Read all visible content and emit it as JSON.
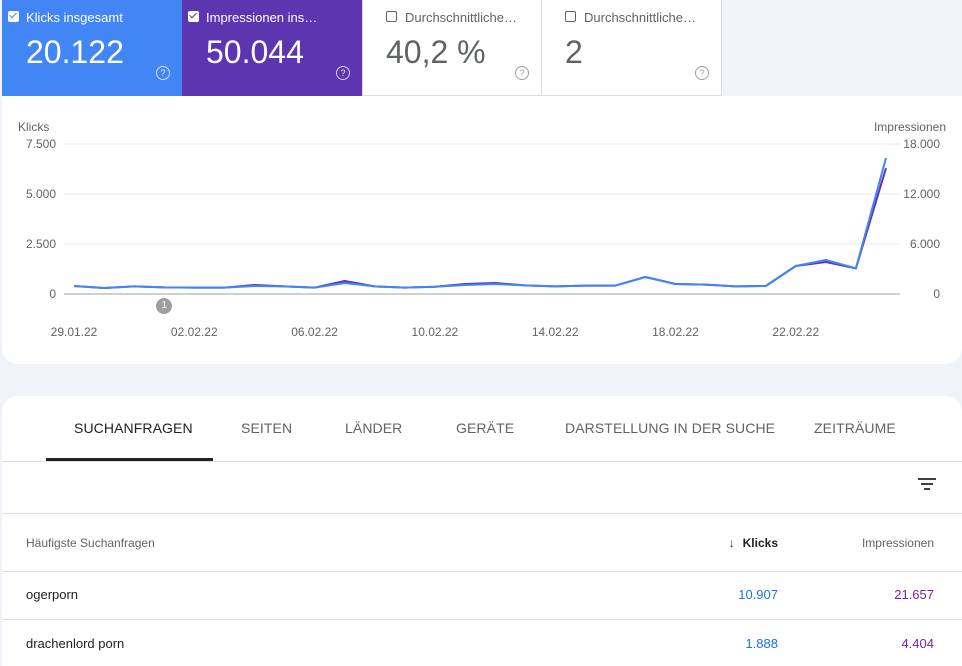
{
  "metrics": [
    {
      "label": "Klicks insgesamt",
      "value": "20.122",
      "checked": true
    },
    {
      "label": "Impressionen ins…",
      "value": "50.044",
      "checked": true
    },
    {
      "label": "Durchschnittliche…",
      "value": "40,2 %",
      "checked": false
    },
    {
      "label": "Durchschnittliche…",
      "value": "2",
      "checked": false
    }
  ],
  "chart_data": {
    "type": "line",
    "x": [
      "29.01.22",
      "30.01.22",
      "31.01.22",
      "01.02.22",
      "02.02.22",
      "03.02.22",
      "04.02.22",
      "05.02.22",
      "06.02.22",
      "07.02.22",
      "08.02.22",
      "09.02.22",
      "10.02.22",
      "11.02.22",
      "12.02.22",
      "13.02.22",
      "14.02.22",
      "15.02.22",
      "16.02.22",
      "17.02.22",
      "18.02.22",
      "19.02.22",
      "20.02.22",
      "21.02.22",
      "22.02.22",
      "23.02.22",
      "24.02.22",
      "25.02.22"
    ],
    "xticks": [
      "29.01.22",
      "02.02.22",
      "06.02.22",
      "10.02.22",
      "14.02.22",
      "18.02.22",
      "22.02.22"
    ],
    "ylabel_left": "Klicks",
    "ylabel_right": "Impressionen",
    "yticks_left": [
      "7.500",
      "5.000",
      "2.500",
      "0"
    ],
    "yticks_right": [
      "18.000",
      "12.000",
      "6.000",
      "0"
    ],
    "ylim_left": [
      0,
      7500
    ],
    "ylim_right": [
      0,
      18000
    ],
    "grid": true,
    "annotation": {
      "label": "1",
      "x": "01.02.22"
    },
    "series": [
      {
        "name": "Klicks",
        "axis": "left",
        "color": "#4285f4",
        "values": [
          400,
          300,
          380,
          330,
          320,
          320,
          400,
          380,
          320,
          550,
          380,
          320,
          360,
          450,
          500,
          430,
          380,
          420,
          420,
          850,
          500,
          470,
          380,
          400,
          1400,
          1700,
          1280,
          6800
        ]
      },
      {
        "name": "Impressionen",
        "axis": "right",
        "color": "#5e35b1",
        "values": [
          960,
          720,
          910,
          790,
          770,
          770,
          1080,
          910,
          770,
          1560,
          910,
          770,
          860,
          1200,
          1320,
          1030,
          910,
          1010,
          1010,
          2040,
          1200,
          1130,
          910,
          960,
          3360,
          3840,
          3070,
          15100
        ]
      }
    ]
  },
  "tabs": [
    {
      "label": "Suchanfragen",
      "active": true
    },
    {
      "label": "Seiten",
      "active": false
    },
    {
      "label": "Länder",
      "active": false
    },
    {
      "label": "Geräte",
      "active": false
    },
    {
      "label": "Darstellung in der Suche",
      "active": false
    },
    {
      "label": "Zeiträume",
      "active": false
    }
  ],
  "table": {
    "headers": {
      "query": "Häufigste Suchanfragen",
      "clicks": "Klicks",
      "impressions": "Impressionen"
    },
    "sort_icon": "arrow-down-icon",
    "rows": [
      {
        "query": "ogerporn",
        "clicks": "10.907",
        "impressions": "21.657"
      },
      {
        "query": "drachenlord porn",
        "clicks": "1.888",
        "impressions": "4.404"
      }
    ]
  },
  "icons": {
    "filter": "filter-icon",
    "help": "help-icon"
  }
}
